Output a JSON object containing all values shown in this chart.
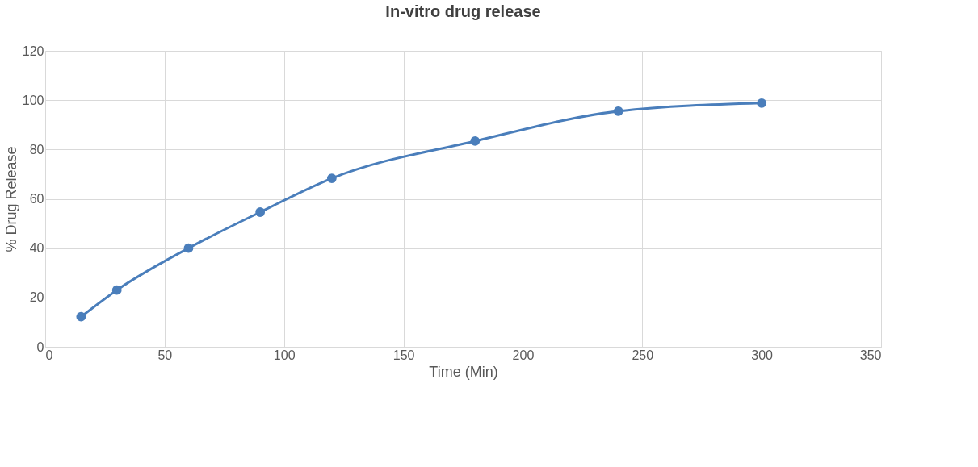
{
  "chart_data": {
    "type": "line",
    "title": "In-vitro drug release",
    "xlabel": "Time (Min)",
    "ylabel": "% Drug Release",
    "x": [
      15,
      30,
      60,
      90,
      120,
      180,
      240,
      300
    ],
    "series": [
      {
        "color": "#4a7ebb",
        "values": [
          12.2,
          23,
          40,
          54.6,
          68.3,
          83.4,
          95.5,
          98.8
        ]
      }
    ],
    "xlim": [
      0,
      350
    ],
    "xticks": [
      0,
      50,
      100,
      150,
      200,
      250,
      300,
      350
    ],
    "ylim": [
      0,
      120
    ],
    "yticks": [
      0,
      20,
      40,
      60,
      80,
      100,
      120
    ],
    "grid": true,
    "marker": "circle",
    "line_style": "solid"
  }
}
